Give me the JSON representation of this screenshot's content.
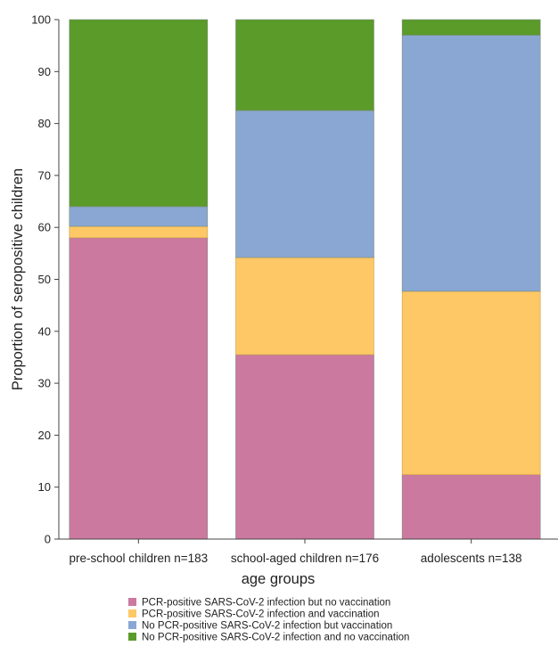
{
  "chart_data": {
    "type": "bar",
    "stacked": true,
    "categories": [
      "pre-school children n=183",
      "school-aged children n=176",
      "adolescents n=138"
    ],
    "series": [
      {
        "name": "PCR-positive SARS-CoV-2 infection but no vaccination",
        "values": [
          58,
          35.5,
          12.4
        ],
        "color": "#cc79a0"
      },
      {
        "name": "PCR-positive SARS-CoV-2 infection and vaccination",
        "values": [
          2.2,
          18.7,
          35.3
        ],
        "color": "#fdc865"
      },
      {
        "name": "No PCR-positive SARS-CoV-2 infection but vaccination",
        "values": [
          3.8,
          28.3,
          49.3
        ],
        "color": "#8aa7d3"
      },
      {
        "name": "No PCR-positive SARS-CoV-2 infection and no vaccination",
        "values": [
          36,
          17.5,
          3
        ],
        "color": "#5a9b2a"
      }
    ],
    "xlabel": "age groups",
    "ylabel": "Proportion of seropositive children",
    "ylim": [
      0,
      100
    ],
    "yticks": [
      0,
      10,
      20,
      30,
      40,
      50,
      60,
      70,
      80,
      90,
      100
    ],
    "legend_position": "bottom",
    "grid": false
  }
}
